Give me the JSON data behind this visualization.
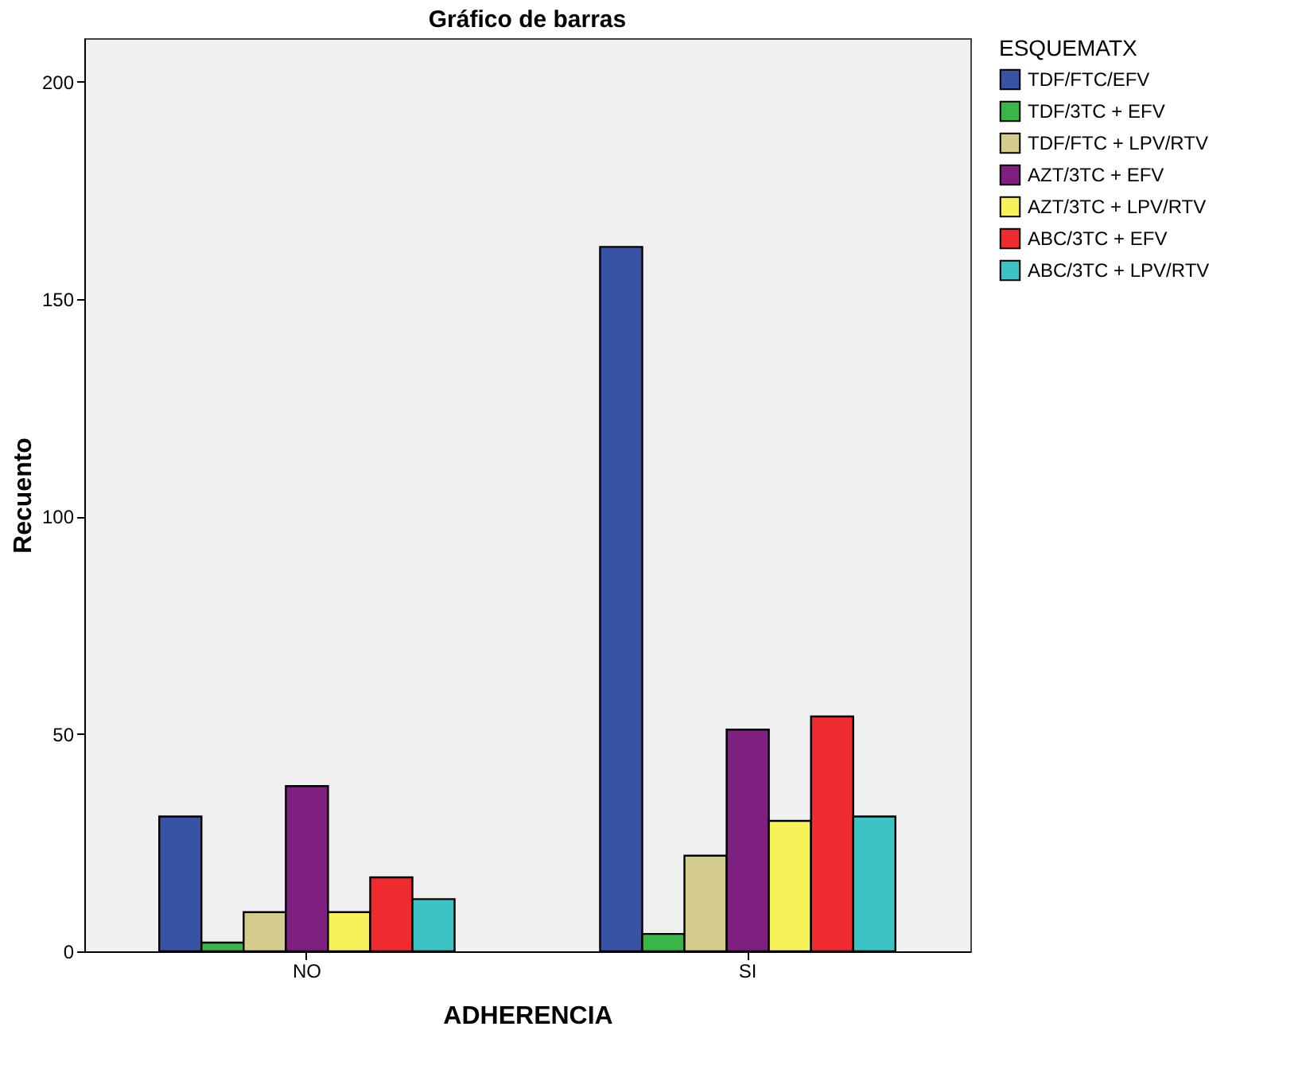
{
  "chart_data": {
    "type": "bar",
    "title": "Gráfico de barras",
    "xlabel": "ADHERENCIA",
    "ylabel": "Recuento",
    "legend_title": "ESQUEMATX",
    "categories": [
      "NO",
      "SI"
    ],
    "series": [
      {
        "name": "TDF/FTC/EFV",
        "color": "#3953a4",
        "values": [
          31,
          162
        ]
      },
      {
        "name": "TDF/3TC + EFV",
        "color": "#3ab54a",
        "values": [
          2,
          4
        ]
      },
      {
        "name": "TDF/FTC + LPV/RTV",
        "color": "#d4cc8c",
        "values": [
          9,
          22
        ]
      },
      {
        "name": "AZT/3TC + EFV",
        "color": "#7f1f7f",
        "values": [
          38,
          51
        ]
      },
      {
        "name": "AZT/3TC + LPV/RTV",
        "color": "#f8f25a",
        "values": [
          9,
          30
        ]
      },
      {
        "name": "ABC/3TC + EFV",
        "color": "#ee2b2f",
        "values": [
          17,
          54
        ]
      },
      {
        "name": "ABC/3TC + LPV/RTV",
        "color": "#3cc3c3",
        "values": [
          12,
          31
        ]
      }
    ],
    "ylim": [
      0,
      210
    ],
    "yticks": [
      0,
      50,
      100,
      150,
      200
    ],
    "grid": false,
    "legend": "top right"
  }
}
